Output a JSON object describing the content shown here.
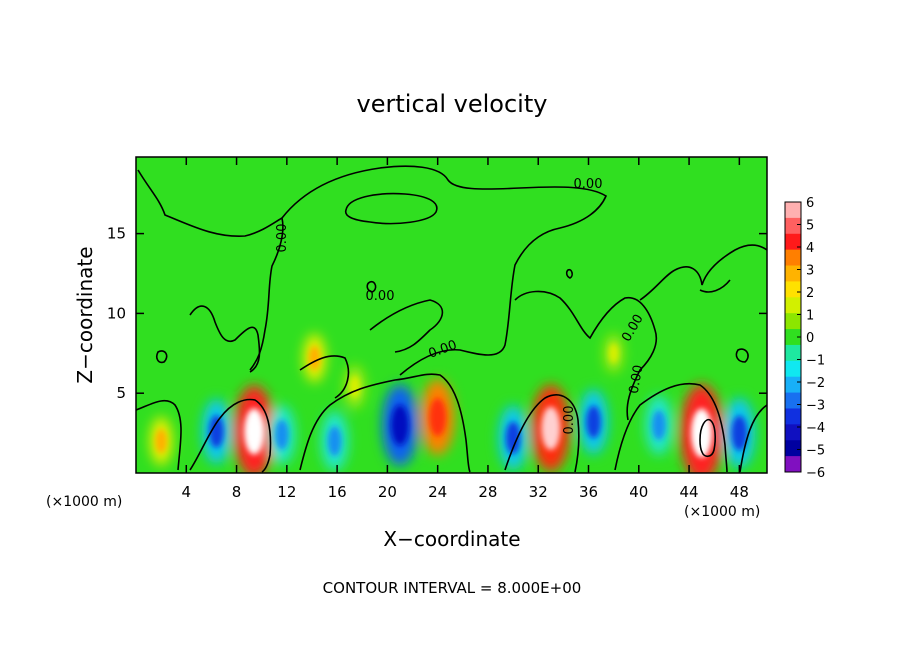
{
  "chart_data": {
    "type": "heatmap",
    "title": "vertical velocity",
    "xlabel": "X−coordinate",
    "ylabel": "Z−coordinate",
    "x_unit": "(×1000 m)",
    "y_unit": "(×1000 m)",
    "footer": "CONTOUR INTERVAL = 8.000E+00",
    "xlim": [
      0,
      50.2
    ],
    "ylim": [
      0,
      19.8
    ],
    "x_ticks": [
      4,
      8,
      12,
      16,
      20,
      24,
      28,
      32,
      36,
      40,
      44,
      48
    ],
    "y_ticks": [
      5,
      10,
      15
    ],
    "colorbar": {
      "range": [
        -6,
        6
      ],
      "labels": [
        "6",
        "5",
        "4",
        "3",
        "2",
        "1",
        "0",
        "−1",
        "−2",
        "−3",
        "−4",
        "−5",
        "−6"
      ],
      "colors": [
        "#ffb0b0",
        "#ff6060",
        "#ff1a1a",
        "#ff7f00",
        "#ffb300",
        "#ffe100",
        "#d2f000",
        "#8ce600",
        "#30df20",
        "#1ee8a0",
        "#10e8f0",
        "#18b0f8",
        "#1870f0",
        "#1030e0",
        "#1010c0",
        "#0000a0",
        "#8010c0"
      ]
    },
    "contour_labels": [
      "0.00",
      "0.00",
      "0.00",
      "0.00",
      "0.00",
      "0.00",
      "0.00"
    ],
    "features": [
      {
        "x": 9.4,
        "z": 2.6,
        "w": 5.5
      },
      {
        "x": 11.6,
        "z": 2.4,
        "w": -2.5
      },
      {
        "x": 6.4,
        "z": 2.6,
        "w": -3.0
      },
      {
        "x": 14.2,
        "z": 7.2,
        "w": 1.5
      },
      {
        "x": 17.4,
        "z": 5.4,
        "w": 1.0
      },
      {
        "x": 15.8,
        "z": 2.0,
        "w": -2.5
      },
      {
        "x": 21.0,
        "z": 3.0,
        "w": -4.5
      },
      {
        "x": 24.0,
        "z": 3.5,
        "w": 4.0
      },
      {
        "x": 30.0,
        "z": 2.2,
        "w": -3.0
      },
      {
        "x": 33.0,
        "z": 2.8,
        "w": 5.0
      },
      {
        "x": 36.4,
        "z": 3.2,
        "w": -3.0
      },
      {
        "x": 41.6,
        "z": 3.0,
        "w": -2.5
      },
      {
        "x": 45.0,
        "z": 2.5,
        "w": 6.0
      },
      {
        "x": 48.0,
        "z": 2.5,
        "w": -3.5
      },
      {
        "x": 2.0,
        "z": 2.0,
        "w": 1.5
      },
      {
        "x": 38.0,
        "z": 7.5,
        "w": 0.6
      }
    ]
  }
}
